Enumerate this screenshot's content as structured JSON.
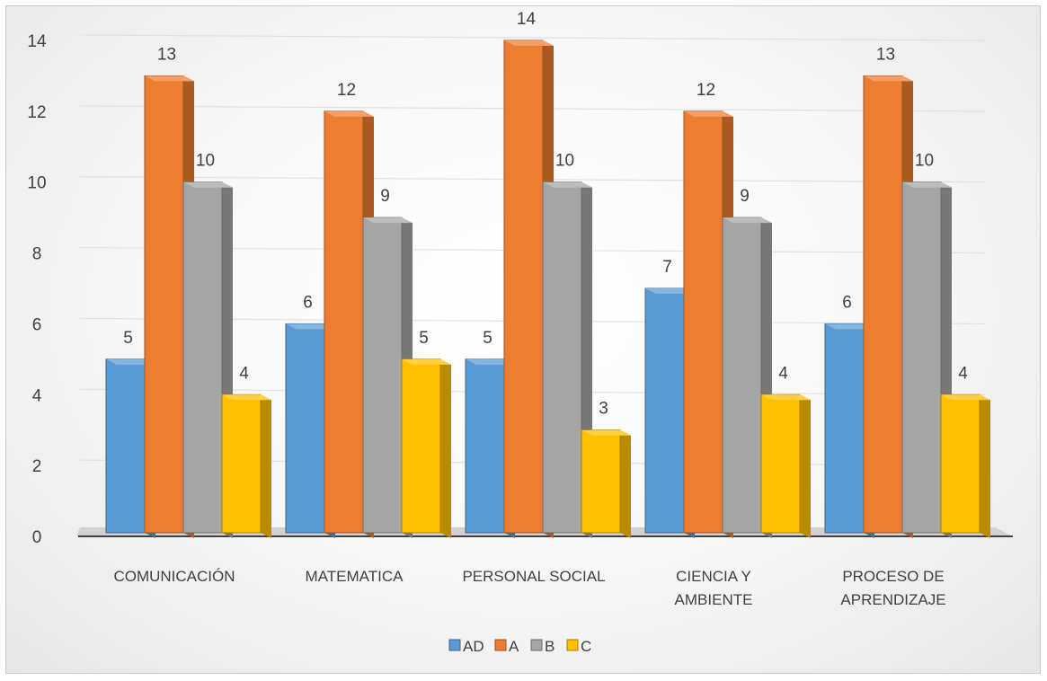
{
  "chart_data": {
    "type": "bar",
    "title": "",
    "xlabel": "",
    "ylabel": "",
    "ylim": [
      0,
      14
    ],
    "yticks": [
      0,
      2,
      4,
      6,
      8,
      10,
      12,
      14
    ],
    "grid": true,
    "legend_position": "bottom",
    "categories": [
      [
        "COMUNICACIÓN"
      ],
      [
        "MATEMATICA"
      ],
      [
        "PERSONAL SOCIAL"
      ],
      [
        "CIENCIA Y",
        "AMBIENTE"
      ],
      [
        "PROCESO DE",
        "APRENDIZAJE"
      ]
    ],
    "series": [
      {
        "name": "AD",
        "values": [
          5,
          6,
          5,
          7,
          6
        ],
        "color": "#5b9bd5"
      },
      {
        "name": "A",
        "values": [
          13,
          12,
          14,
          12,
          13
        ],
        "color": "#ed7d31"
      },
      {
        "name": "B",
        "values": [
          10,
          9,
          10,
          9,
          10
        ],
        "color": "#a5a5a5"
      },
      {
        "name": "C",
        "values": [
          4,
          5,
          3,
          4,
          4
        ],
        "color": "#ffc000"
      }
    ]
  }
}
